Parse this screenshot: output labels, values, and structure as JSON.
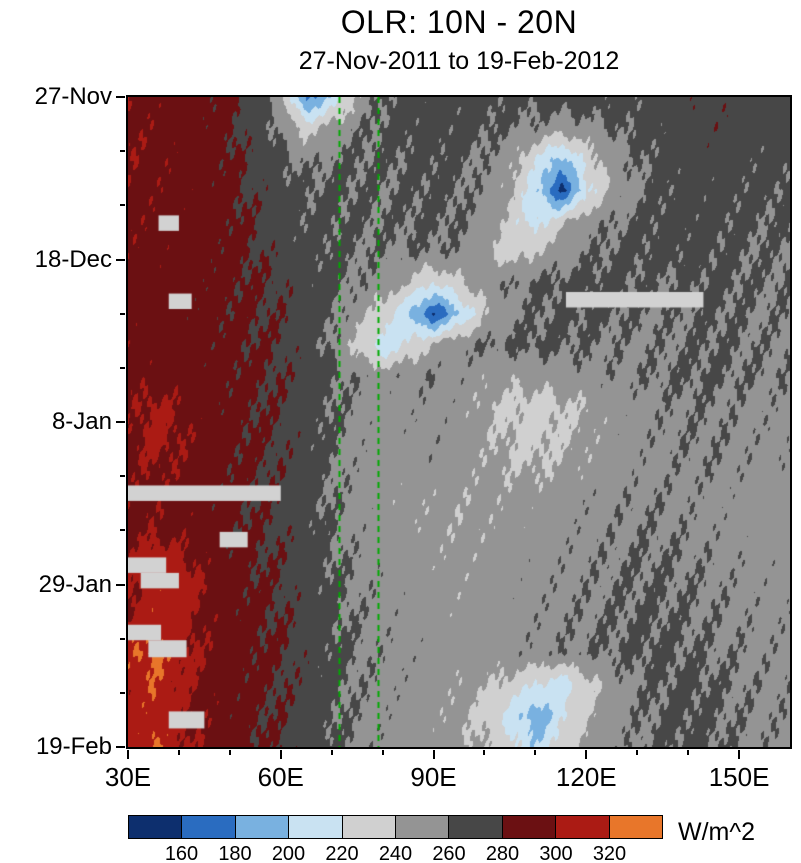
{
  "title": "OLR: 10N - 20N",
  "subtitle": "27-Nov-2011 to 19-Feb-2012",
  "colorbar": {
    "units": "W/m^2",
    "tick_labels": [
      "160",
      "180",
      "200",
      "220",
      "240",
      "260",
      "280",
      "300",
      "320"
    ],
    "colors": [
      "#0d2f6e",
      "#2a6cc0",
      "#79b1e0",
      "#c9e2f2",
      "#d0d0d0",
      "#949494",
      "#474747",
      "#6b1012",
      "#ab1b14",
      "#e8762a"
    ]
  },
  "axes": {
    "x_ticks": [
      {
        "lon": 30,
        "label": "30E"
      },
      {
        "lon": 60,
        "label": "60E"
      },
      {
        "lon": 90,
        "label": "90E"
      },
      {
        "lon": 120,
        "label": "120E"
      },
      {
        "lon": 150,
        "label": "150E"
      }
    ],
    "x_minor_step": 10,
    "y_ticks": [
      {
        "day": 0,
        "label": "27-Nov"
      },
      {
        "day": 21,
        "label": "18-Dec"
      },
      {
        "day": 42,
        "label": "8-Jan"
      },
      {
        "day": 63,
        "label": "29-Jan"
      },
      {
        "day": 84,
        "label": "19-Feb"
      }
    ],
    "y_minor_step": 7
  },
  "chart_data": {
    "type": "heatmap",
    "title": "OLR: 10N - 20N",
    "subtitle": "27-Nov-2011 to 19-Feb-2012",
    "units": "W/m^2",
    "start_date": "27-Nov-2011",
    "end_date": "19-Feb-2012",
    "x_unit": "longitude_deg_east",
    "y_unit": "time_days_from_start_downward",
    "x_range": [
      30,
      160
    ],
    "y_range_days": [
      0,
      84
    ],
    "levels": [
      160,
      180,
      200,
      220,
      240,
      260,
      280,
      300,
      320
    ],
    "reference_lines_lon": [
      71.5,
      79
    ],
    "reference_line_color": "#00aa00",
    "missing_color": "#d2d2d2",
    "missing_bars": [
      {
        "lon": [
          36,
          40
        ],
        "day": [
          15.3,
          17.3
        ]
      },
      {
        "lon": [
          38,
          42.5
        ],
        "day": [
          25.4,
          27.4
        ]
      },
      {
        "lon": [
          116,
          143
        ],
        "day": [
          25.2,
          27.2
        ]
      },
      {
        "lon": [
          30,
          60
        ],
        "day": [
          50.2,
          52.2
        ]
      },
      {
        "lon": [
          48,
          53.5
        ],
        "day": [
          56.2,
          58.2
        ]
      },
      {
        "lon": [
          30,
          37.5
        ],
        "day": [
          59.5,
          61.5
        ]
      },
      {
        "lon": [
          32.5,
          40
        ],
        "day": [
          61.5,
          63.5
        ]
      },
      {
        "lon": [
          30,
          36.5
        ],
        "day": [
          68.2,
          70.2
        ]
      },
      {
        "lon": [
          34,
          41.5
        ],
        "day": [
          70.2,
          72.4
        ]
      },
      {
        "lon": [
          38,
          45
        ],
        "day": [
          79.4,
          81.6
        ]
      }
    ],
    "grid_lons": [
      30,
      35,
      40,
      45,
      50,
      55,
      60,
      65,
      70,
      75,
      80,
      85,
      90,
      95,
      100,
      105,
      110,
      115,
      120,
      125,
      130,
      135,
      140,
      145,
      150,
      155
    ],
    "grid_days": [
      0,
      4,
      8,
      12,
      16,
      20,
      24,
      28,
      32,
      36,
      40,
      44,
      48,
      52,
      56,
      60,
      64,
      68,
      72,
      76,
      80,
      84
    ],
    "values": [
      [
        296,
        292,
        290,
        288,
        284,
        272,
        250,
        172,
        205,
        245,
        262,
        268,
        270,
        268,
        266,
        264,
        266,
        268,
        270,
        268,
        266,
        268,
        272,
        274,
        272,
        270
      ],
      [
        298,
        294,
        291,
        288,
        283,
        270,
        258,
        235,
        248,
        258,
        263,
        266,
        268,
        266,
        264,
        260,
        256,
        250,
        254,
        260,
        264,
        268,
        272,
        274,
        272,
        270
      ],
      [
        297,
        295,
        292,
        289,
        284,
        274,
        264,
        256,
        260,
        262,
        261,
        263,
        265,
        263,
        258,
        248,
        222,
        192,
        228,
        250,
        260,
        266,
        270,
        270,
        268,
        266
      ],
      [
        296,
        294,
        292,
        290,
        285,
        276,
        268,
        262,
        263,
        262,
        260,
        262,
        264,
        262,
        254,
        242,
        208,
        154,
        212,
        246,
        258,
        264,
        268,
        268,
        266,
        264
      ],
      [
        295,
        293,
        291,
        289,
        286,
        278,
        270,
        264,
        264,
        262,
        260,
        262,
        263,
        261,
        252,
        234,
        210,
        234,
        252,
        258,
        262,
        266,
        268,
        266,
        264,
        262
      ],
      [
        294,
        292,
        291,
        289,
        286,
        280,
        272,
        266,
        264,
        260,
        258,
        259,
        260,
        256,
        246,
        228,
        240,
        252,
        258,
        262,
        264,
        266,
        266,
        264,
        262,
        260
      ],
      [
        293,
        291,
        290,
        288,
        285,
        281,
        277,
        270,
        264,
        258,
        252,
        242,
        220,
        238,
        252,
        258,
        262,
        264,
        266,
        264,
        262,
        260,
        262,
        264,
        262,
        260
      ],
      [
        292,
        290,
        289,
        287,
        284,
        281,
        278,
        271,
        263,
        248,
        232,
        200,
        158,
        198,
        238,
        254,
        260,
        262,
        264,
        262,
        260,
        258,
        260,
        262,
        260,
        258
      ],
      [
        293,
        291,
        290,
        288,
        285,
        282,
        278,
        270,
        258,
        236,
        206,
        222,
        244,
        256,
        261,
        263,
        264,
        262,
        260,
        258,
        256,
        258,
        260,
        262,
        260,
        258
      ],
      [
        294,
        292,
        291,
        289,
        286,
        283,
        279,
        271,
        263,
        257,
        252,
        255,
        258,
        254,
        248,
        245,
        247,
        251,
        254,
        256,
        258,
        260,
        262,
        262,
        260,
        258
      ],
      [
        295,
        305,
        298,
        290,
        286,
        282,
        278,
        270,
        262,
        255,
        250,
        252,
        254,
        250,
        242,
        236,
        232,
        236,
        242,
        248,
        252,
        256,
        258,
        258,
        256,
        254
      ],
      [
        296,
        306,
        300,
        291,
        286,
        282,
        278,
        270,
        261,
        254,
        250,
        252,
        254,
        250,
        244,
        238,
        234,
        238,
        244,
        250,
        254,
        256,
        258,
        258,
        256,
        254
      ],
      [
        294,
        300,
        296,
        290,
        285,
        281,
        277,
        269,
        260,
        253,
        249,
        251,
        253,
        249,
        245,
        241,
        239,
        243,
        247,
        251,
        253,
        255,
        257,
        257,
        255,
        253
      ],
      [
        293,
        296,
        293,
        289,
        284,
        280,
        276,
        268,
        259,
        253,
        249,
        247,
        246,
        244,
        245,
        247,
        249,
        251,
        253,
        255,
        257,
        257,
        255,
        253,
        251,
        249
      ],
      [
        294,
        297,
        294,
        290,
        285,
        281,
        277,
        269,
        260,
        254,
        250,
        248,
        246,
        244,
        246,
        248,
        250,
        252,
        254,
        256,
        258,
        258,
        256,
        254,
        252,
        250
      ],
      [
        300,
        312,
        306,
        294,
        287,
        282,
        278,
        270,
        262,
        256,
        252,
        250,
        248,
        246,
        248,
        250,
        252,
        254,
        256,
        258,
        260,
        260,
        258,
        256,
        254,
        252
      ],
      [
        298,
        310,
        314,
        299,
        289,
        283,
        279,
        271,
        263,
        257,
        253,
        251,
        249,
        247,
        249,
        251,
        253,
        255,
        257,
        259,
        261,
        261,
        259,
        257,
        255,
        253
      ],
      [
        304,
        314,
        306,
        296,
        289,
        284,
        280,
        272,
        264,
        258,
        254,
        252,
        250,
        248,
        250,
        252,
        254,
        256,
        258,
        260,
        262,
        262,
        260,
        258,
        256,
        254
      ],
      [
        316,
        326,
        310,
        298,
        290,
        285,
        281,
        273,
        265,
        259,
        255,
        253,
        251,
        249,
        251,
        253,
        255,
        257,
        259,
        261,
        263,
        263,
        261,
        259,
        257,
        255
      ],
      [
        308,
        318,
        304,
        296,
        289,
        284,
        280,
        272,
        264,
        258,
        254,
        252,
        250,
        246,
        242,
        234,
        220,
        208,
        232,
        250,
        258,
        262,
        264,
        262,
        258,
        256
      ],
      [
        306,
        316,
        302,
        295,
        288,
        283,
        279,
        271,
        263,
        257,
        253,
        251,
        248,
        243,
        234,
        214,
        184,
        214,
        238,
        252,
        258,
        262,
        264,
        262,
        258,
        256
      ],
      [
        312,
        322,
        306,
        296,
        288,
        283,
        279,
        271,
        263,
        257,
        253,
        251,
        249,
        246,
        240,
        226,
        202,
        226,
        244,
        254,
        258,
        262,
        264,
        262,
        258,
        256
      ]
    ]
  }
}
